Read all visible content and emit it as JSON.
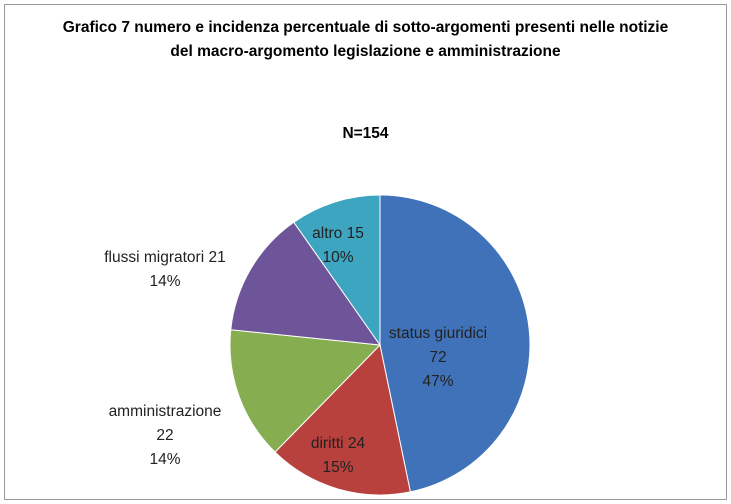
{
  "chart_data": {
    "type": "pie",
    "title": "Grafico 7 numero e incidenza percentuale di sotto-argomenti presenti nelle notizie del macro-argomento legislazione e amministrazione",
    "subtitle": "N=154",
    "categories": [
      "status giuridici",
      "diritti",
      "amministrazione",
      "flussi migratori",
      "altro"
    ],
    "values": [
      72,
      24,
      22,
      21,
      15
    ],
    "value_labels": [
      "47%",
      "15%",
      "14%",
      "14%",
      "10%"
    ],
    "colors": [
      "#3f72b8",
      "#b8413e",
      "#86ad4f",
      "#6e559a",
      "#3ea5c1"
    ]
  }
}
